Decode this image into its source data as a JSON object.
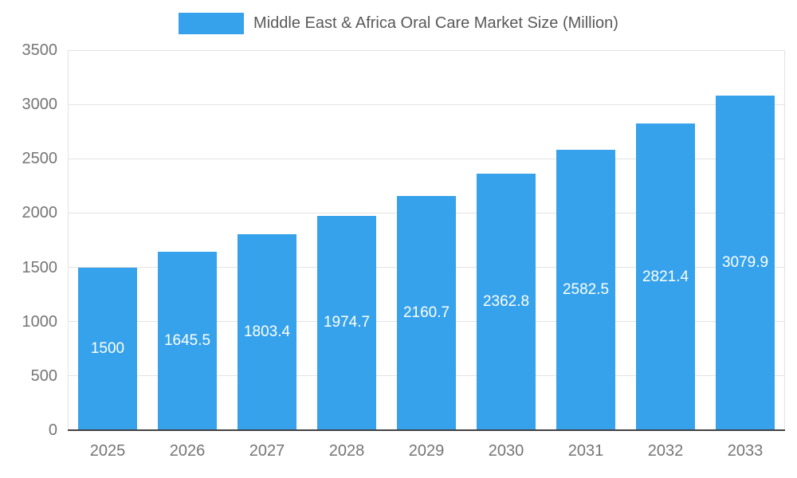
{
  "chart_data": {
    "type": "bar",
    "title": "Middle East & Africa Oral Care Market Size (Million)",
    "categories": [
      "2025",
      "2026",
      "2027",
      "2028",
      "2029",
      "2030",
      "2031",
      "2032",
      "2033"
    ],
    "values": [
      1500,
      1645.5,
      1803.4,
      1974.7,
      2160.7,
      2362.8,
      2582.5,
      2821.4,
      3079.9
    ],
    "value_labels": [
      "1500",
      "1645.5",
      "1803.4",
      "1974.7",
      "2160.7",
      "2362.8",
      "2582.5",
      "2821.4",
      "3079.9"
    ],
    "xlabel": "",
    "ylabel": "",
    "ylim": [
      0,
      3500
    ],
    "yticks": [
      0,
      500,
      1000,
      1500,
      2000,
      2500,
      3000,
      3500
    ],
    "grid": true,
    "legend_position": "top",
    "bar_color": "#36a2eb",
    "value_label_color": "#ffffff",
    "axis_text_color": "#757575",
    "grid_color": "#e3e3e3",
    "baseline_color": "#424242"
  }
}
